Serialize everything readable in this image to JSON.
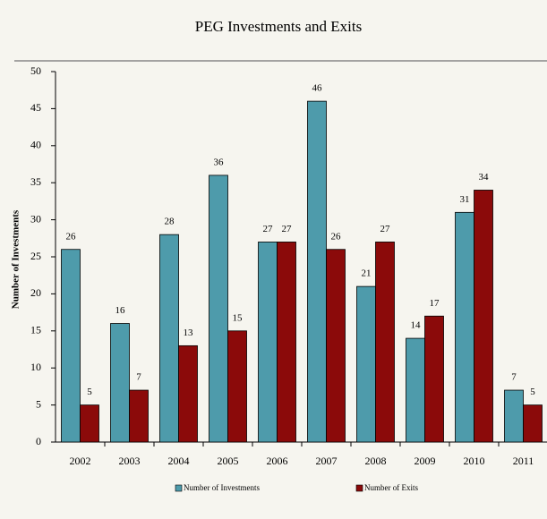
{
  "chart_data": {
    "type": "bar",
    "title": "PEG Investments and Exits",
    "y_label": "Number of Investments",
    "categories": [
      "2002",
      "2003",
      "2004",
      "2005",
      "2006",
      "2007",
      "2008",
      "2009",
      "2010",
      "2011"
    ],
    "series": [
      {
        "name": "Number of Investments",
        "color": "#4e9bab",
        "values": [
          26,
          16,
          28,
          36,
          27,
          46,
          21,
          14,
          31,
          7
        ]
      },
      {
        "name": "Number of Exits",
        "color": "#8b0a0a",
        "values": [
          5,
          7,
          13,
          15,
          27,
          26,
          27,
          17,
          34,
          5
        ]
      }
    ],
    "ylim": [
      0,
      50
    ],
    "yticks": [
      0,
      5,
      10,
      15,
      20,
      25,
      30,
      35,
      40,
      45,
      50
    ],
    "grid": false,
    "legend": "bottom"
  }
}
